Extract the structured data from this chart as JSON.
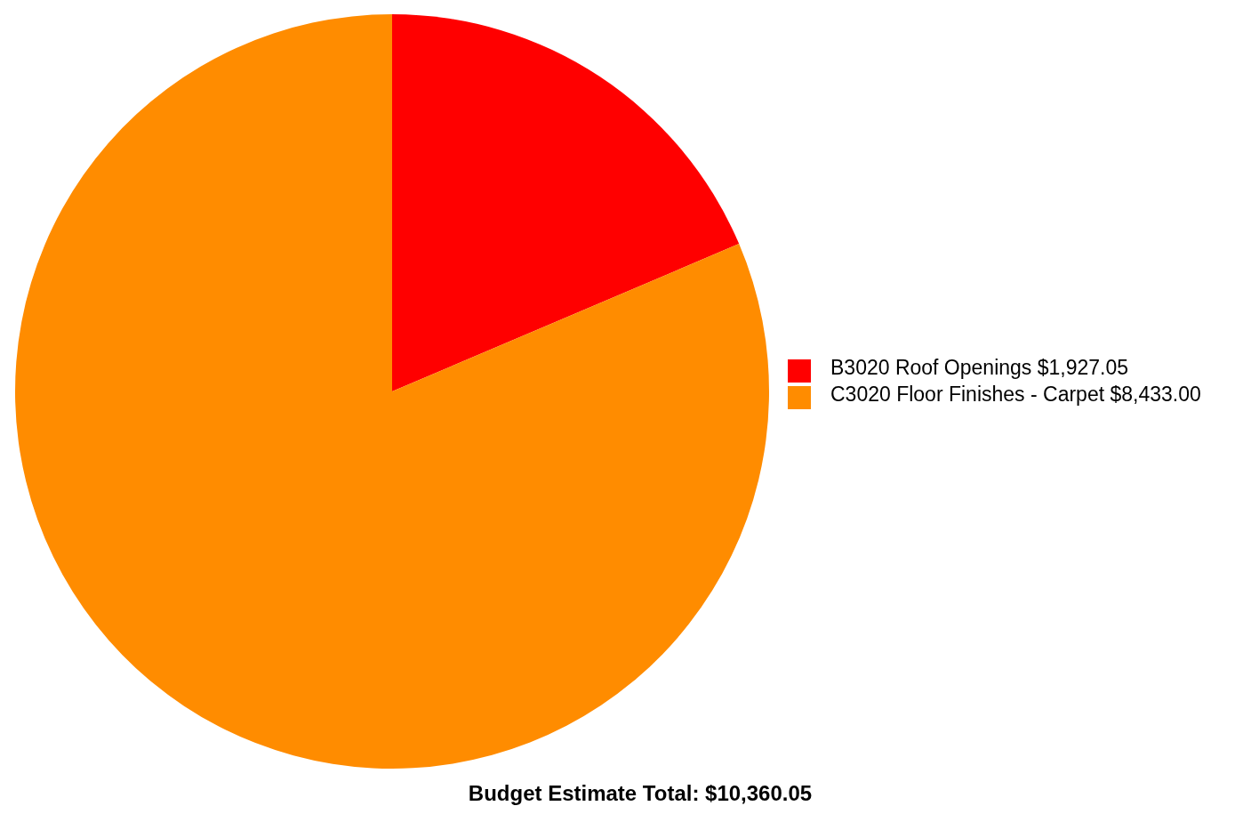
{
  "chart_data": {
    "type": "pie",
    "title": "Budget Estimate Total: $10,360.05",
    "categories": [
      "B3020 Roof Openings",
      "C3020 Floor Finishes - Carpet"
    ],
    "values": [
      1927.05,
      8433.0
    ],
    "colors": [
      "#ff0000",
      "#ff8c00"
    ],
    "value_labels": [
      "$1,927.05",
      "$8,433.00"
    ],
    "legend": "right"
  }
}
